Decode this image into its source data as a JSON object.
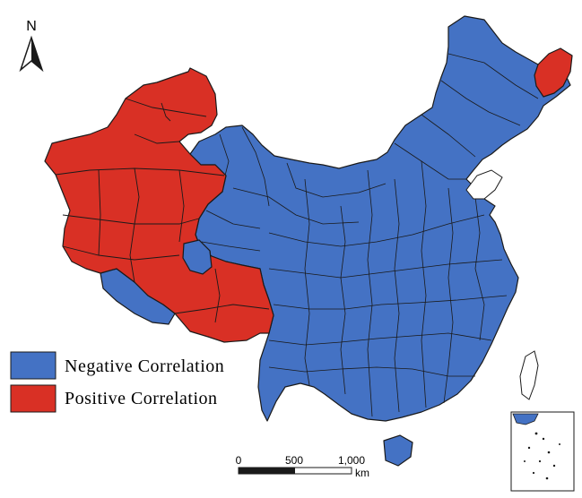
{
  "north_arrow": {
    "label": "N"
  },
  "legend": {
    "items": [
      {
        "label": "Negative Correlation",
        "color": "#4472C4"
      },
      {
        "label": "Positive Correlation",
        "color": "#D93025"
      }
    ]
  },
  "scale_bar": {
    "ticks": [
      "0",
      "500",
      "1,000"
    ],
    "unit": "km"
  },
  "colors": {
    "negative": "#4472C4",
    "positive": "#D93025",
    "boundary": "#1a1a1a"
  }
}
